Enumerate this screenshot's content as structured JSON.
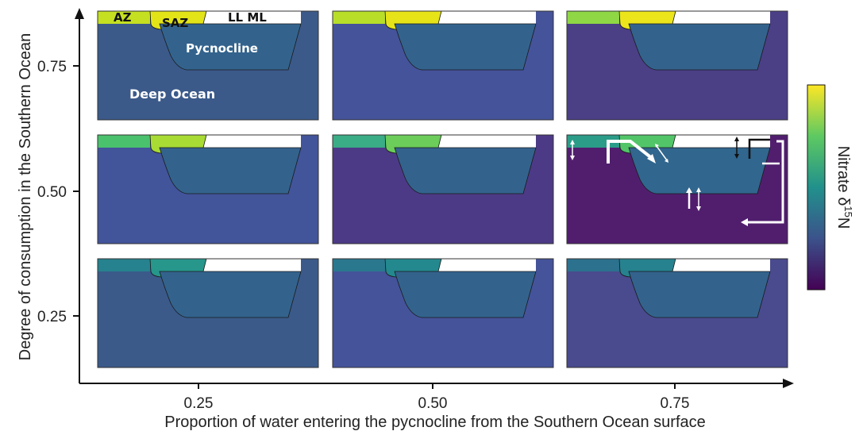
{
  "axes": {
    "x_title": "Proportion of water entering the pycnocline from the Southern Ocean surface",
    "y_title": "Degree of consumption in the Southern Ocean",
    "x_ticks": [
      "0.25",
      "0.50",
      "0.75"
    ],
    "y_ticks": [
      "0.75",
      "0.50",
      "0.25"
    ]
  },
  "colorbar": {
    "label_prefix": "Nitrate δ",
    "label_sup": "15",
    "label_suffix": "N",
    "colors": [
      "#fde725",
      "#35b779",
      "#31688e",
      "#482878",
      "#440154"
    ]
  },
  "region_labels": {
    "az": "AZ",
    "saz": "SAZ",
    "ll_ml": "LL ML",
    "pycnocline": "Pycnocline",
    "deep_ocean": "Deep Ocean"
  },
  "panels": [
    {
      "row": 0,
      "col": 0,
      "az": "#c5e021",
      "saz": "#e3e418",
      "pyc": "#33638d",
      "deep": "#3b5a8a"
    },
    {
      "row": 0,
      "col": 1,
      "az": "#b8de29",
      "saz": "#e6e419",
      "pyc": "#33638d",
      "deep": "#45539a"
    },
    {
      "row": 0,
      "col": 2,
      "az": "#8fd744",
      "saz": "#ece51b",
      "pyc": "#33638d",
      "deep": "#4b3f86"
    },
    {
      "row": 1,
      "col": 0,
      "az": "#4ac16d",
      "saz": "#a8db34",
      "pyc": "#33638d",
      "deep": "#42549a"
    },
    {
      "row": 1,
      "col": 1,
      "az": "#3aac86",
      "saz": "#6ccd5a",
      "pyc": "#33638d",
      "deep": "#4d3a86"
    },
    {
      "row": 1,
      "col": 2,
      "az": "#2a9c88",
      "saz": "#52c569",
      "pyc": "#31668e",
      "deep": "#511e6e"
    },
    {
      "row": 2,
      "col": 0,
      "az": "#26828e",
      "saz": "#27968b",
      "pyc": "#33638d",
      "deep": "#3b5a8a"
    },
    {
      "row": 2,
      "col": 1,
      "az": "#2a788e",
      "saz": "#23898e",
      "pyc": "#33638d",
      "deep": "#45539a"
    },
    {
      "row": 2,
      "col": 2,
      "az": "#2c718e",
      "saz": "#26828e",
      "pyc": "#33638d",
      "deep": "#4a4a8e"
    }
  ]
}
